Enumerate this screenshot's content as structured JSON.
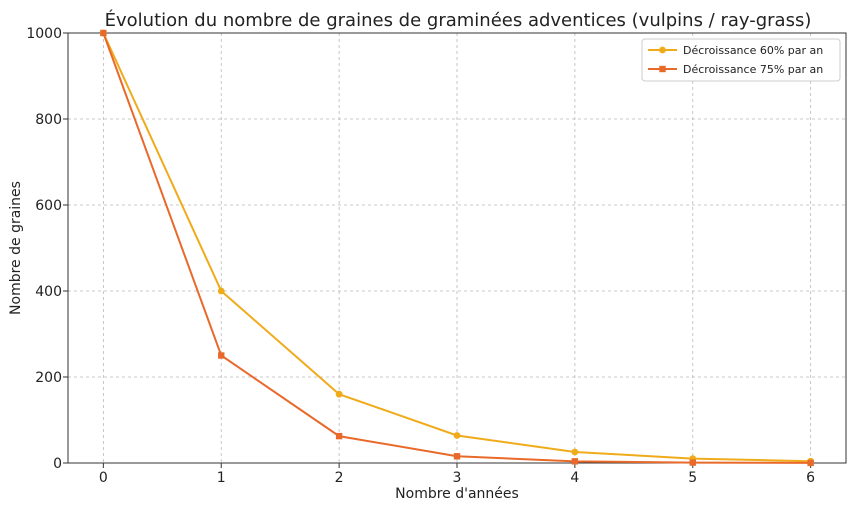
{
  "chart_data": {
    "type": "line",
    "title": "Évolution du nombre de graines de graminées adventices (vulpins / ray-grass)",
    "xlabel": "Nombre d'années",
    "ylabel": "Nombre de graines",
    "x": [
      0,
      1,
      2,
      3,
      4,
      5,
      6
    ],
    "xticks": [
      "0",
      "1",
      "2",
      "3",
      "4",
      "5",
      "6"
    ],
    "yticks": [
      "0",
      "200",
      "400",
      "600",
      "800",
      "1000"
    ],
    "xlim": [
      -0.3,
      6.3
    ],
    "ylim": [
      0,
      1000
    ],
    "grid": true,
    "legend_position": "top-right",
    "series": [
      {
        "name": "Décroissance 60% par an",
        "color": "#f0ab1a",
        "marker": "circle",
        "values": [
          1000,
          400,
          160,
          64,
          25.6,
          10.2,
          4.1
        ]
      },
      {
        "name": "Décroissance 75% par an",
        "color": "#e8692a",
        "marker": "square",
        "values": [
          1000,
          250,
          62.5,
          15.6,
          3.9,
          1.0,
          0.2
        ]
      }
    ]
  }
}
